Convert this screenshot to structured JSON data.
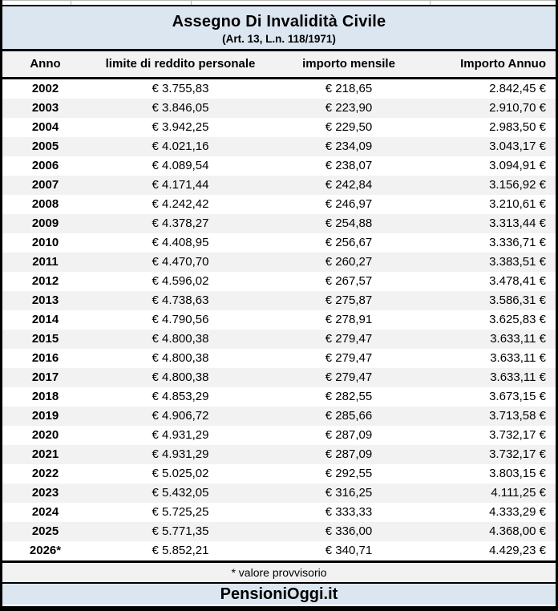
{
  "header": {
    "title": "Assegno Di Invalidità Civile",
    "subtitle": "(Art. 13, L.n. 118/1971)"
  },
  "columns": {
    "anno": "Anno",
    "limite": "limite di reddito personale",
    "mensile": "importo mensile",
    "annuo": "Importo Annuo"
  },
  "rows": [
    {
      "anno": "2002",
      "limite": "€ 3.755,83",
      "mensile": "€ 218,65",
      "annuo": "2.842,45 €"
    },
    {
      "anno": "2003",
      "limite": "€ 3.846,05",
      "mensile": "€ 223,90",
      "annuo": "2.910,70 €"
    },
    {
      "anno": "2004",
      "limite": "€ 3.942,25",
      "mensile": "€ 229,50",
      "annuo": "2.983,50 €"
    },
    {
      "anno": "2005",
      "limite": "€ 4.021,16",
      "mensile": "€ 234,09",
      "annuo": "3.043,17 €"
    },
    {
      "anno": "2006",
      "limite": "€ 4.089,54",
      "mensile": "€ 238,07",
      "annuo": "3.094,91 €"
    },
    {
      "anno": "2007",
      "limite": "€ 4.171,44",
      "mensile": "€ 242,84",
      "annuo": "3.156,92 €"
    },
    {
      "anno": "2008",
      "limite": "€ 4.242,42",
      "mensile": "€ 246,97",
      "annuo": "3.210,61 €"
    },
    {
      "anno": "2009",
      "limite": "€ 4.378,27",
      "mensile": "€ 254,88",
      "annuo": "3.313,44 €"
    },
    {
      "anno": "2010",
      "limite": "€ 4.408,95",
      "mensile": "€ 256,67",
      "annuo": "3.336,71 €"
    },
    {
      "anno": "2011",
      "limite": "€ 4.470,70",
      "mensile": "€ 260,27",
      "annuo": "3.383,51 €"
    },
    {
      "anno": "2012",
      "limite": "€ 4.596,02",
      "mensile": "€ 267,57",
      "annuo": "3.478,41 €"
    },
    {
      "anno": "2013",
      "limite": "€ 4.738,63",
      "mensile": "€ 275,87",
      "annuo": "3.586,31 €"
    },
    {
      "anno": "2014",
      "limite": "€ 4.790,56",
      "mensile": "€ 278,91",
      "annuo": "3.625,83 €"
    },
    {
      "anno": "2015",
      "limite": "€ 4.800,38",
      "mensile": "€ 279,47",
      "annuo": "3.633,11 €"
    },
    {
      "anno": "2016",
      "limite": "€ 4.800,38",
      "mensile": "€ 279,47",
      "annuo": "3.633,11 €"
    },
    {
      "anno": "2017",
      "limite": "€ 4.800,38",
      "mensile": "€ 279,47",
      "annuo": "3.633,11 €"
    },
    {
      "anno": "2018",
      "limite": "€ 4.853,29",
      "mensile": "€ 282,55",
      "annuo": "3.673,15 €"
    },
    {
      "anno": "2019",
      "limite": "€ 4.906,72",
      "mensile": "€ 285,66",
      "annuo": "3.713,58 €"
    },
    {
      "anno": "2020",
      "limite": "€ 4.931,29",
      "mensile": "€ 287,09",
      "annuo": "3.732,17 €"
    },
    {
      "anno": "2021",
      "limite": "€ 4.931,29",
      "mensile": "€ 287,09",
      "annuo": "3.732,17 €"
    },
    {
      "anno": "2022",
      "limite": "€ 5.025,02",
      "mensile": "€ 292,55",
      "annuo": "3.803,15 €"
    },
    {
      "anno": "2023",
      "limite": "€ 5.432,05",
      "mensile": "€ 316,25",
      "annuo": "4.111,25 €"
    },
    {
      "anno": "2024",
      "limite": "€ 5.725,25",
      "mensile": "€ 333,33",
      "annuo": "4.333,29 €"
    },
    {
      "anno": "2025",
      "limite": "€ 5.771,35",
      "mensile": "€ 336,00",
      "annuo": "4.368,00 €"
    },
    {
      "anno": "2026*",
      "limite": "€ 5.852,21",
      "mensile": "€ 340,71",
      "annuo": "4.429,23 €"
    }
  ],
  "footnote": "* valore provvisorio",
  "brand": "PensioniOggi.it",
  "colors": {
    "header_bg": "#dce6f1",
    "stripe_bg": "#f2f2f2",
    "border": "#000000"
  }
}
